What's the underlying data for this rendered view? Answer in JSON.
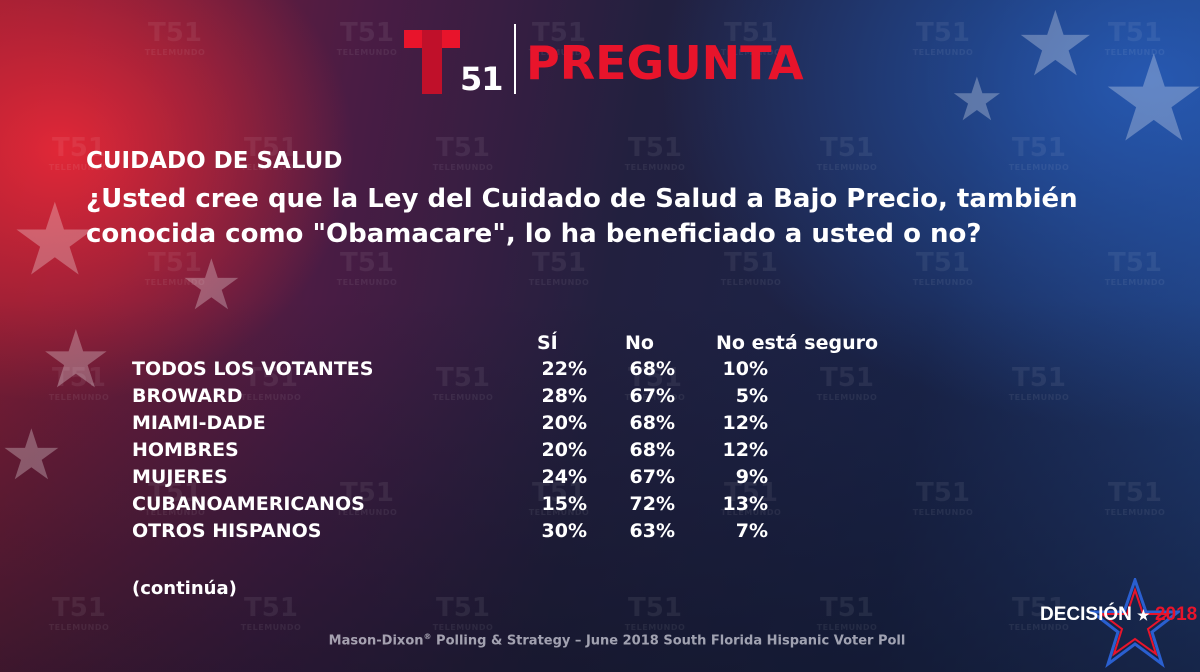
{
  "brand": {
    "logo_number": "51",
    "section_title": "PREGUNTA",
    "watermark": {
      "number": "51",
      "name": "TELEMUNDO"
    }
  },
  "topic": "CUIDADO DE SALUD",
  "question": "¿Usted cree que la Ley del Cuidado de Salud a Bajo Precio, también conocida como \"Obamacare\", lo ha beneficiado a usted o no?",
  "table": {
    "columns": [
      "SÍ",
      "No",
      "No está seguro"
    ],
    "rows": [
      {
        "label": "TODOS LOS VOTANTES",
        "si": "22%",
        "no": "68%",
        "ns": "10%"
      },
      {
        "label": "BROWARD",
        "si": "28%",
        "no": "67%",
        "ns": "5%"
      },
      {
        "label": "MIAMI-DADE",
        "si": "20%",
        "no": "68%",
        "ns": "12%"
      },
      {
        "label": "HOMBRES",
        "si": "20%",
        "no": "68%",
        "ns": "12%"
      },
      {
        "label": "MUJERES",
        "si": "24%",
        "no": "67%",
        "ns": "9%"
      },
      {
        "label": "CUBANOAMERICANOS",
        "si": "15%",
        "no": "72%",
        "ns": "13%"
      },
      {
        "label": "OTROS HISPANOS",
        "si": "30%",
        "no": "63%",
        "ns": "7%"
      }
    ]
  },
  "continuation": "(continúa)",
  "footer": {
    "source_name": "Mason-Dixon",
    "registered_mark": "®",
    "source_rest": " Polling & Strategy – June 2018 South Florida Hispanic Voter Poll"
  },
  "decision": {
    "word": "DECISIÓN",
    "star": "★",
    "year": "2018"
  },
  "colors": {
    "brand_red": "#e8142b",
    "text": "#ffffff"
  },
  "icons": [
    "telemundo-t-logo",
    "decision-star-icon"
  ]
}
